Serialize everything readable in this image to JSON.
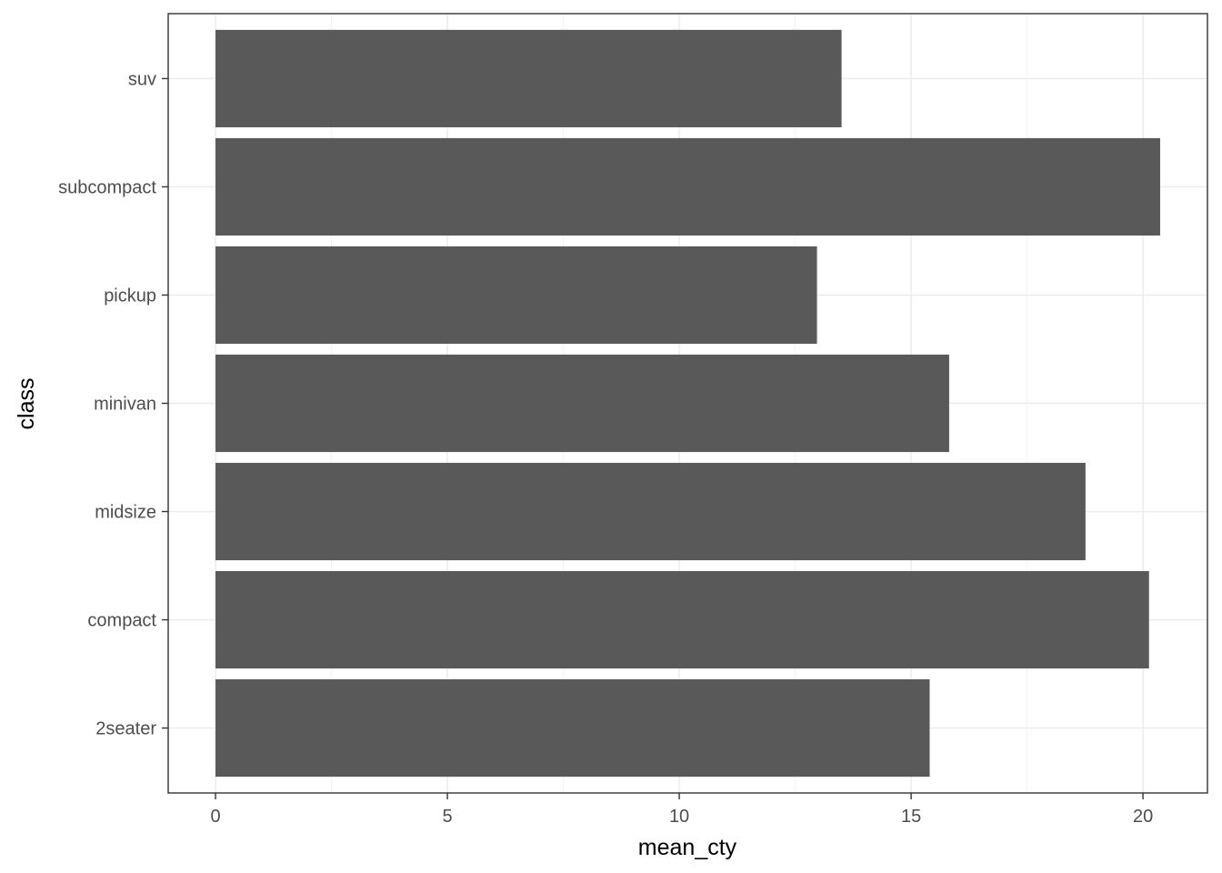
{
  "chart_data": {
    "type": "bar",
    "orientation": "horizontal",
    "categories": [
      "2seater",
      "compact",
      "midsize",
      "minivan",
      "pickup",
      "subcompact",
      "suv"
    ],
    "values": [
      15.4,
      20.13,
      18.76,
      15.82,
      12.97,
      20.37,
      13.5
    ],
    "xlabel": "mean_cty",
    "ylabel": "class",
    "xlim": [
      -1.02,
      21.39
    ],
    "xticks": [
      0,
      5,
      10,
      15,
      20
    ],
    "tick_labels_x": [
      "0",
      "5",
      "10",
      "15",
      "20"
    ],
    "grid": true,
    "bar_color": "#595959",
    "theme": "bw"
  }
}
